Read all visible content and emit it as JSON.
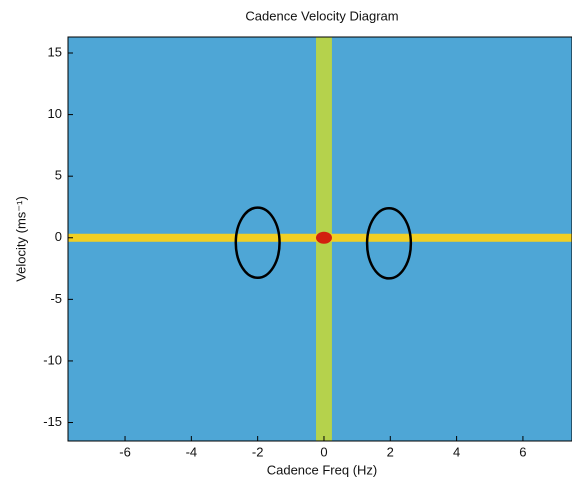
{
  "chart_data": {
    "type": "heatmap",
    "title": "Cadence Velocity Diagram",
    "xlabel": "Cadence Freq (Hz)",
    "ylabel": "Velocity (ms⁻¹)",
    "xlim": [
      -7.72,
      7.48
    ],
    "ylim": [
      -16.5,
      16.3
    ],
    "xticks": [
      -6,
      -4,
      -2,
      0,
      2,
      4,
      6
    ],
    "yticks": [
      -15,
      -10,
      -5,
      0,
      5,
      10,
      15
    ],
    "color": "#4ea6d6",
    "bands": [
      {
        "axis": "x",
        "center": 0,
        "width": 0.48,
        "color": "#b5d24c"
      },
      {
        "axis": "y",
        "center": 0,
        "width": 0.65,
        "color": "#f1cf24"
      }
    ],
    "peak": {
      "x": 0,
      "y": 0,
      "color": "#d2200f"
    },
    "ellipses": [
      {
        "cx": -2,
        "cy": -0.4,
        "rx": 0.66,
        "ry": 2.85
      },
      {
        "cx": 1.96,
        "cy": -0.45,
        "rx": 0.66,
        "ry": 2.85
      }
    ]
  }
}
